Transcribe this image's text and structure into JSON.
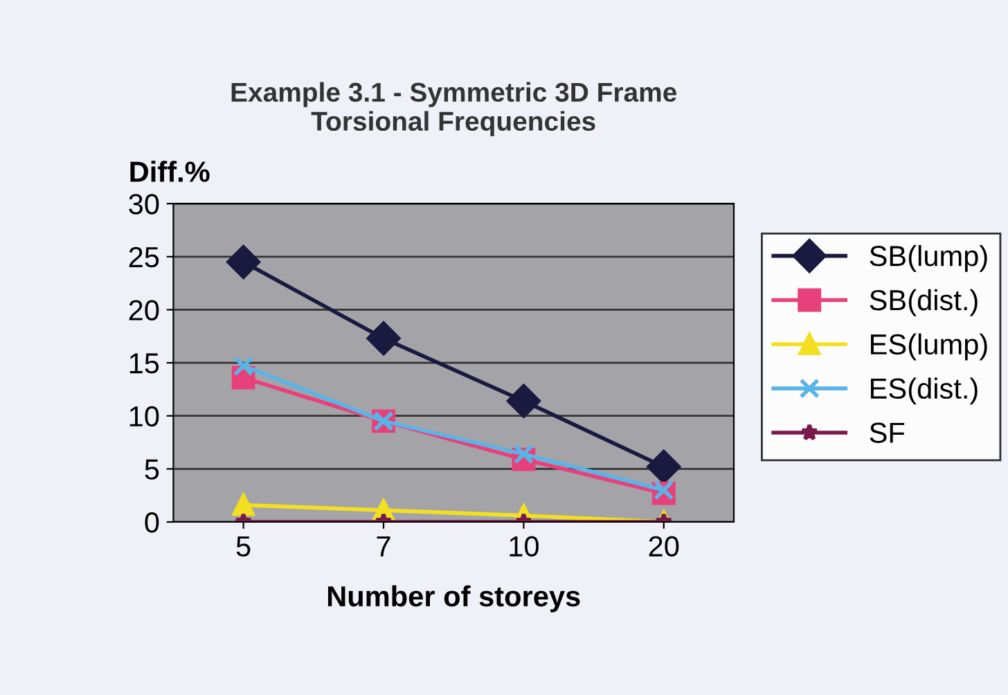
{
  "chart_data": {
    "type": "line",
    "title": "Example 3.1 - Symmetric 3D Frame\nTorsional Frequencies",
    "xlabel": "Number of storeys",
    "ylabel": "Diff.%",
    "categories": [
      "5",
      "7",
      "10",
      "20"
    ],
    "series": [
      {
        "name": "SB(lump)",
        "color": "#1a1a40",
        "marker": "diamond",
        "values": [
          24.5,
          17.3,
          11.4,
          5.2
        ]
      },
      {
        "name": "SB(dist.)",
        "color": "#e8407a",
        "marker": "square",
        "values": [
          13.6,
          9.5,
          5.9,
          2.7
        ]
      },
      {
        "name": "ES(lump)",
        "color": "#f2e020",
        "marker": "triangle",
        "values": [
          1.6,
          1.1,
          0.6,
          0
        ]
      },
      {
        "name": "ES(dist.)",
        "color": "#5ab4e6",
        "marker": "cross",
        "values": [
          14.7,
          9.5,
          6.4,
          3.0
        ]
      },
      {
        "name": "SF",
        "color": "#7a1a4a",
        "marker": "star",
        "values": [
          0,
          0,
          0,
          0
        ]
      }
    ],
    "ylim": [
      0,
      30
    ],
    "yticks": [
      0,
      5,
      10,
      15,
      20,
      25,
      30
    ],
    "grid": "y",
    "legend": "right"
  }
}
